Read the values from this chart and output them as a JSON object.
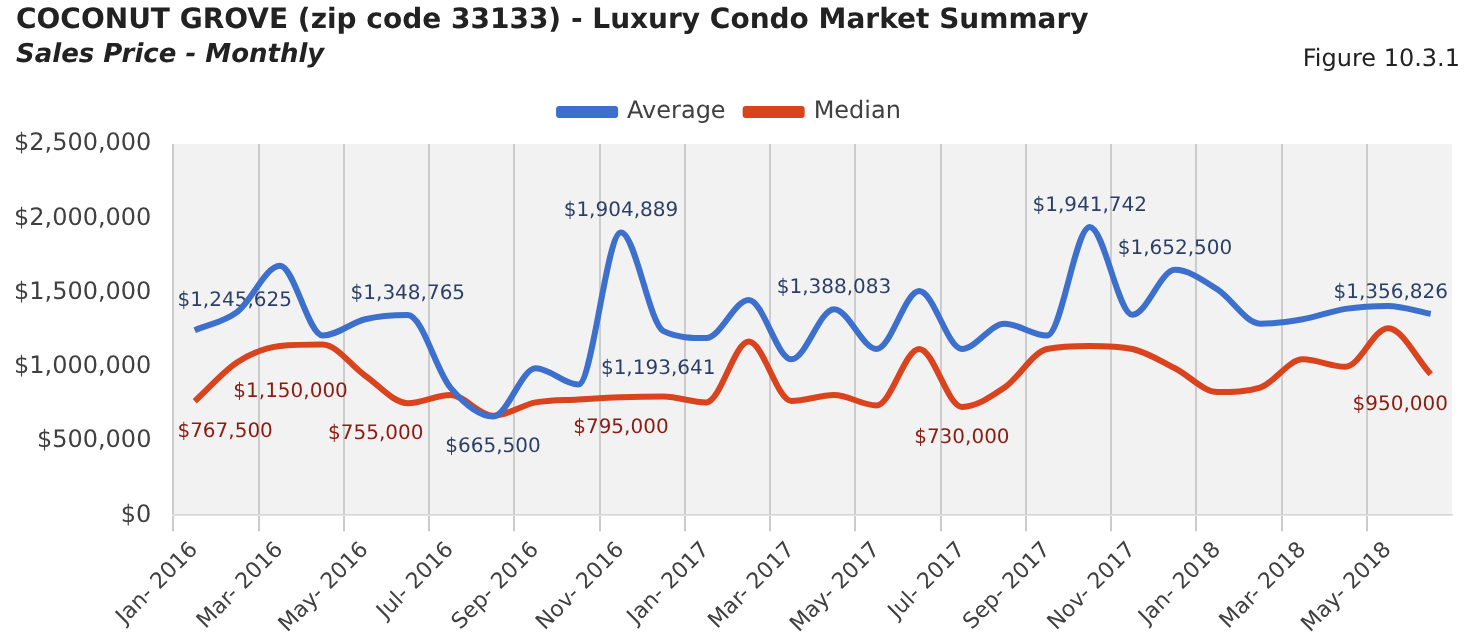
{
  "chart_data": {
    "type": "line",
    "title": "COCONUT GROVE (zip code 33133) - Luxury Condo Market Summary",
    "subtitle": "Sales Price - Monthly",
    "annotations": [
      "Figure 10.3.1"
    ],
    "categories": [
      "Jan- 2016",
      null,
      "Mar- 2016",
      null,
      "May- 2016",
      null,
      "Jul- 2016",
      null,
      "Sep- 2016",
      null,
      "Nov- 2016",
      null,
      "Jan- 2017",
      null,
      "Mar- 2017",
      null,
      "May- 2017",
      null,
      "Jul- 2017",
      null,
      "Sep- 2017",
      null,
      "Nov- 2017",
      null,
      "Jan- 2018",
      null,
      "Mar- 2018",
      null,
      "May- 2018",
      null
    ],
    "series": [
      {
        "name": "Average",
        "color": "#3d6fcc",
        "values": [
          1245625,
          1370000,
          1680000,
          1210000,
          1320000,
          1348765,
          860000,
          665500,
          990000,
          880000,
          1904889,
          1240000,
          1193641,
          1450000,
          1050000,
          1388083,
          1120000,
          1510000,
          1120000,
          1290000,
          1210000,
          1941742,
          1350000,
          1652500,
          1520000,
          1290000,
          1320000,
          1390000,
          1410000,
          1356826
        ],
        "value_labels": [
          "$1,245,625",
          null,
          null,
          null,
          null,
          "$1,348,765",
          null,
          "$665,500",
          null,
          null,
          "$1,904,889",
          null,
          "$1,193,641",
          null,
          null,
          "$1,388,083",
          null,
          null,
          null,
          null,
          null,
          "$1,941,742",
          null,
          "$1,652,500",
          null,
          null,
          null,
          null,
          null,
          "$1,356,826"
        ]
      },
      {
        "name": "Median",
        "color": "#d9431e",
        "values": [
          767500,
          1030000,
          1140000,
          1150000,
          940000,
          755000,
          810000,
          670000,
          760000,
          780000,
          795000,
          800000,
          760000,
          1170000,
          770000,
          810000,
          740000,
          1120000,
          730000,
          860000,
          1120000,
          1140000,
          1120000,
          990000,
          830000,
          860000,
          1050000,
          1000000,
          1260000,
          950000
        ],
        "value_labels": [
          "$767,500",
          null,
          null,
          "$1,150,000",
          null,
          "$755,000",
          null,
          null,
          null,
          null,
          "$795,000",
          null,
          null,
          null,
          null,
          null,
          null,
          null,
          "$730,000",
          null,
          null,
          null,
          null,
          null,
          null,
          null,
          null,
          null,
          null,
          "$950,000"
        ]
      }
    ],
    "ylim": [
      0,
      2500000
    ],
    "yticks": [
      {
        "value": 0,
        "label": "$0"
      },
      {
        "value": 500000,
        "label": "$500,000"
      },
      {
        "value": 1000000,
        "label": "$1,000,000"
      },
      {
        "value": 1500000,
        "label": "$1,500,000"
      },
      {
        "value": 2000000,
        "label": "$2,000,000"
      },
      {
        "value": 2500000,
        "label": "$2,500,000"
      }
    ],
    "grid": "x",
    "legend": "top",
    "marker": "none",
    "line_style": "solid"
  }
}
